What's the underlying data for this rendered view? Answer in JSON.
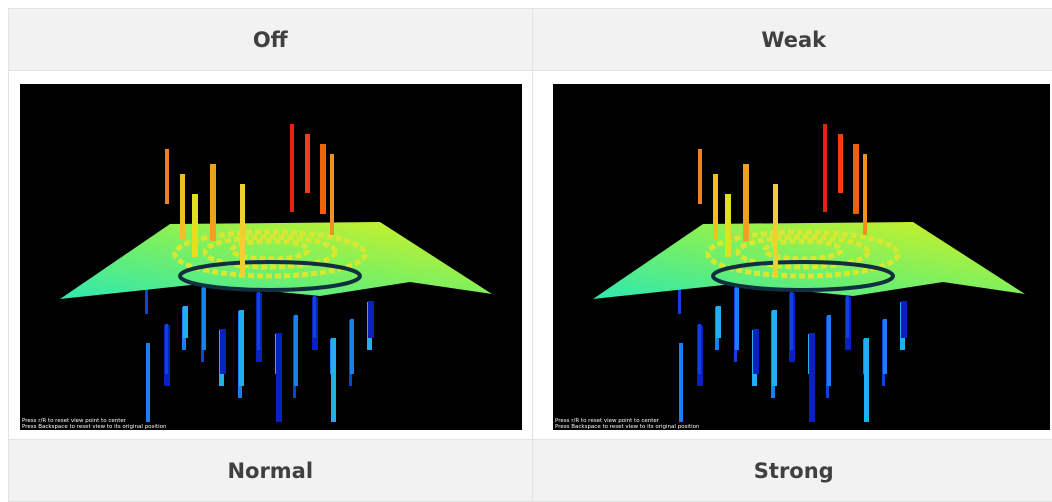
{
  "table": {
    "header": [
      "Off",
      "Weak"
    ],
    "images": [
      {
        "captions": [
          "Press r/R to reset view point to center",
          "Press Backspace to reset view to its original position"
        ]
      },
      {
        "captions": [
          "Press r/R to reset view point to center",
          "Press Backspace to reset view to its original position"
        ]
      }
    ],
    "rows": [
      [
        "Normal",
        "Strong"
      ]
    ]
  }
}
